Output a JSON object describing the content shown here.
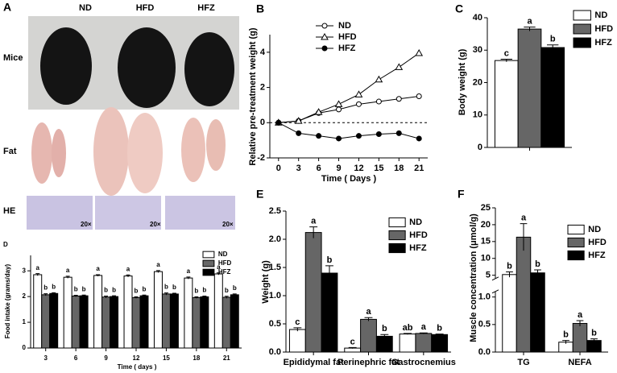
{
  "panel_a": {
    "panel": "A",
    "columns": [
      "ND",
      "HFD",
      "HFZ"
    ],
    "rows": [
      "Mice",
      "Fat",
      "HE"
    ],
    "magnification": [
      "20×",
      "20×",
      "20×"
    ]
  },
  "chart_data": [
    {
      "type": "line",
      "panel": "B",
      "xlabel": "Time ( Days )",
      "ylabel": "Relative pre-treatment weight (g)",
      "x": [
        0,
        3,
        6,
        9,
        12,
        15,
        18,
        21
      ],
      "xlim": [
        -1.3,
        22.3
      ],
      "xticks": [
        0,
        3,
        6,
        9,
        12,
        15,
        18,
        21
      ],
      "ylim": [
        -2,
        5
      ],
      "yticks": [
        -2,
        0,
        2,
        4
      ],
      "reference_line": 0,
      "series": [
        {
          "name": "ND",
          "color": "#000000",
          "marker": "open-circle",
          "values": [
            0,
            0.1,
            0.55,
            0.75,
            1.05,
            1.2,
            1.35,
            1.5
          ]
        },
        {
          "name": "HFD",
          "color": "#000000",
          "marker": "open-triangle",
          "values": [
            0,
            0.1,
            0.6,
            1.05,
            1.6,
            2.45,
            3.15,
            3.95
          ]
        },
        {
          "name": "HFZ",
          "color": "#000000",
          "marker": "filled-circle",
          "values": [
            0,
            -0.6,
            -0.75,
            -0.9,
            -0.75,
            -0.65,
            -0.6,
            -0.9
          ]
        }
      ]
    },
    {
      "type": "bar",
      "panel": "C",
      "ylabel": "Body weight (g)",
      "categories": [
        null
      ],
      "ylim": [
        0,
        40
      ],
      "yticks": [
        0,
        10,
        20,
        30,
        40
      ],
      "series": [
        {
          "name": "ND",
          "color": "#ffffff",
          "values": [
            26.8
          ],
          "errors": [
            0.4
          ],
          "letters": [
            "c"
          ]
        },
        {
          "name": "HFD",
          "color": "#666666",
          "values": [
            36.5
          ],
          "errors": [
            0.6
          ],
          "letters": [
            "a"
          ]
        },
        {
          "name": "HFZ",
          "color": "#000000",
          "values": [
            30.8
          ],
          "errors": [
            0.8
          ],
          "letters": [
            "b"
          ]
        }
      ]
    },
    {
      "type": "bar",
      "panel": "D",
      "xlabel": "Time ( days )",
      "ylabel": "Food intake (grams/day)",
      "categories": [
        "3",
        "6",
        "9",
        "12",
        "15",
        "18",
        "21"
      ],
      "ylim": [
        0,
        3.6
      ],
      "yticks": [
        0,
        1,
        2,
        3
      ],
      "series": [
        {
          "name": "ND",
          "color": "#ffffff",
          "values": [
            2.85,
            2.75,
            2.82,
            2.8,
            2.97,
            2.72,
            2.88
          ],
          "errors": [
            0.04,
            0.04,
            0.03,
            0.04,
            0.04,
            0.04,
            0.04
          ],
          "letters": [
            "a",
            "a",
            "a",
            "a",
            "a",
            "a",
            "a"
          ]
        },
        {
          "name": "HFD",
          "color": "#666666",
          "values": [
            2.07,
            2.02,
            1.98,
            1.96,
            2.1,
            1.96,
            1.97
          ],
          "errors": [
            0.04,
            0.03,
            0.04,
            0.03,
            0.04,
            0.03,
            0.04
          ],
          "letters": [
            "b",
            "b",
            "b",
            "b",
            "b",
            "b",
            "b"
          ]
        },
        {
          "name": "HFZ",
          "color": "#000000",
          "values": [
            2.12,
            2.03,
            2.0,
            2.03,
            2.1,
            1.99,
            2.07
          ],
          "errors": [
            0.03,
            0.03,
            0.03,
            0.03,
            0.03,
            0.03,
            0.03
          ],
          "letters": [
            "b",
            "b",
            "b",
            "b",
            "b",
            "b",
            "b"
          ]
        }
      ]
    },
    {
      "type": "bar",
      "panel": "E",
      "ylabel": "Weight (g)",
      "categories": [
        "Epididymal fat",
        "Perinephric fat",
        "Gastrocnemius"
      ],
      "ylim": [
        0,
        2.5
      ],
      "yticks": [
        {
          "value": 0,
          "label": "0.0"
        },
        0.5,
        {
          "value": 1,
          "label": "1.0"
        },
        1.5,
        {
          "value": 2,
          "label": "2.0"
        },
        2.5
      ],
      "series": [
        {
          "name": "ND",
          "color": "#ffffff",
          "values": [
            0.4,
            0.07,
            0.32
          ],
          "errors": [
            0.03,
            0.01,
            0.01
          ],
          "letters": [
            "c",
            "c",
            "ab"
          ]
        },
        {
          "name": "HFD",
          "color": "#666666",
          "values": [
            2.12,
            0.58,
            0.33
          ],
          "errors": [
            0.1,
            0.03,
            0.01
          ],
          "letters": [
            "a",
            "a",
            "a"
          ]
        },
        {
          "name": "HFZ",
          "color": "#000000",
          "values": [
            1.4,
            0.28,
            0.31
          ],
          "errors": [
            0.13,
            0.03,
            0.01
          ],
          "letters": [
            "b",
            "b",
            "b"
          ]
        }
      ]
    },
    {
      "type": "bar",
      "panel": "F",
      "ylabel": "Muscle concentration (μmol/g)",
      "categories": [
        "TG",
        "NEFA"
      ],
      "ylim_lower": [
        0,
        1.1
      ],
      "yticks_lower": [
        {
          "value": 0,
          "label": "0.0"
        },
        0.5,
        {
          "value": 1,
          "label": "1.0"
        }
      ],
      "ylim_upper": [
        4,
        25
      ],
      "yticks_upper": [
        5,
        10,
        15,
        20,
        25
      ],
      "series": [
        {
          "name": "ND",
          "color": "#ffffff",
          "values": [
            5.2,
            0.18
          ],
          "errors": [
            0.8,
            0.03
          ],
          "letters": [
            "b",
            "b"
          ]
        },
        {
          "name": "HFD",
          "color": "#666666",
          "values": [
            16.3,
            0.52
          ],
          "errors": [
            4,
            0.05
          ],
          "letters": [
            "a",
            "a"
          ]
        },
        {
          "name": "HFZ",
          "color": "#000000",
          "values": [
            5.7,
            0.21
          ],
          "errors": [
            0.9,
            0.03
          ],
          "letters": [
            "b",
            "b"
          ]
        }
      ]
    }
  ]
}
